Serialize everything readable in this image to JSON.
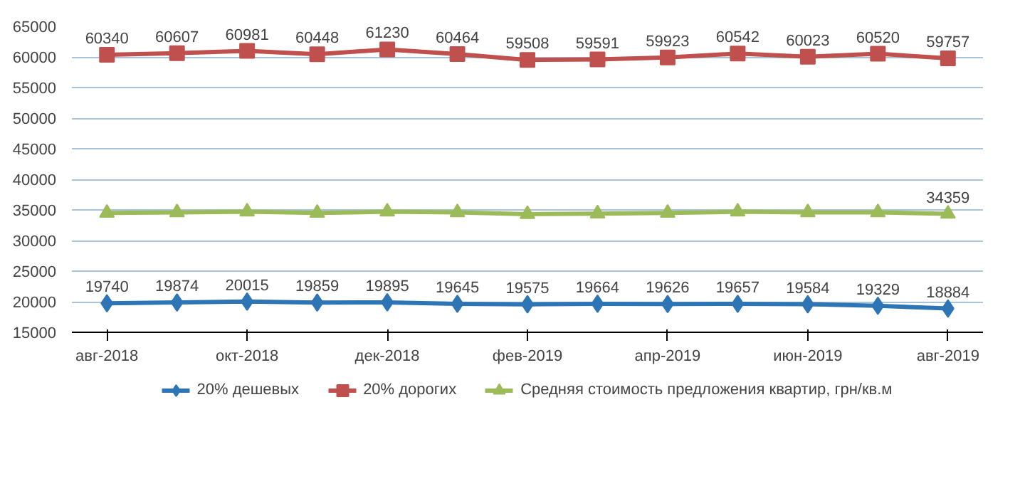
{
  "chart_data": {
    "type": "line",
    "categories": [
      "авг-2018",
      null,
      "окт-2018",
      null,
      "дек-2018",
      null,
      "фев-2019",
      null,
      "апр-2019",
      null,
      "июн-2019",
      null,
      "авг-2019"
    ],
    "series": [
      {
        "name": "20% дешевых",
        "color": "#2e75b6",
        "marker": "diamond",
        "values": [
          19740,
          19874,
          20015,
          19859,
          19895,
          19645,
          19575,
          19664,
          19626,
          19657,
          19584,
          19329,
          18884
        ],
        "value_labels": [
          "19740",
          "19874",
          "20015",
          "19859",
          "19895",
          "19645",
          "19575",
          "19664",
          "19626",
          "19657",
          "19584",
          "19329",
          "18884"
        ]
      },
      {
        "name": "20% дорогих",
        "color": "#c0504d",
        "marker": "square",
        "values": [
          60340,
          60607,
          60981,
          60448,
          61230,
          60464,
          59508,
          59591,
          59923,
          60542,
          60023,
          60520,
          59757
        ],
        "value_labels": [
          "60340",
          "60607",
          "60981",
          "60448",
          "61230",
          "60464",
          "59508",
          "59591",
          "59923",
          "60542",
          "60023",
          "60520",
          "59757"
        ]
      },
      {
        "name": "Средняя стоимость предложения квартир, грн/кв.м",
        "color": "#9bbb59",
        "marker": "triangle",
        "values": [
          34500,
          34600,
          34700,
          34500,
          34700,
          34600,
          34300,
          34400,
          34500,
          34700,
          34600,
          34600,
          34359
        ],
        "value_labels": [
          null,
          null,
          null,
          null,
          null,
          null,
          null,
          null,
          null,
          null,
          null,
          null,
          "34359"
        ]
      }
    ],
    "ylim": [
      15000,
      65000
    ],
    "yticks": [
      15000,
      20000,
      25000,
      30000,
      35000,
      40000,
      45000,
      50000,
      55000,
      60000,
      65000
    ],
    "grid": "y",
    "legend": "bottom"
  }
}
